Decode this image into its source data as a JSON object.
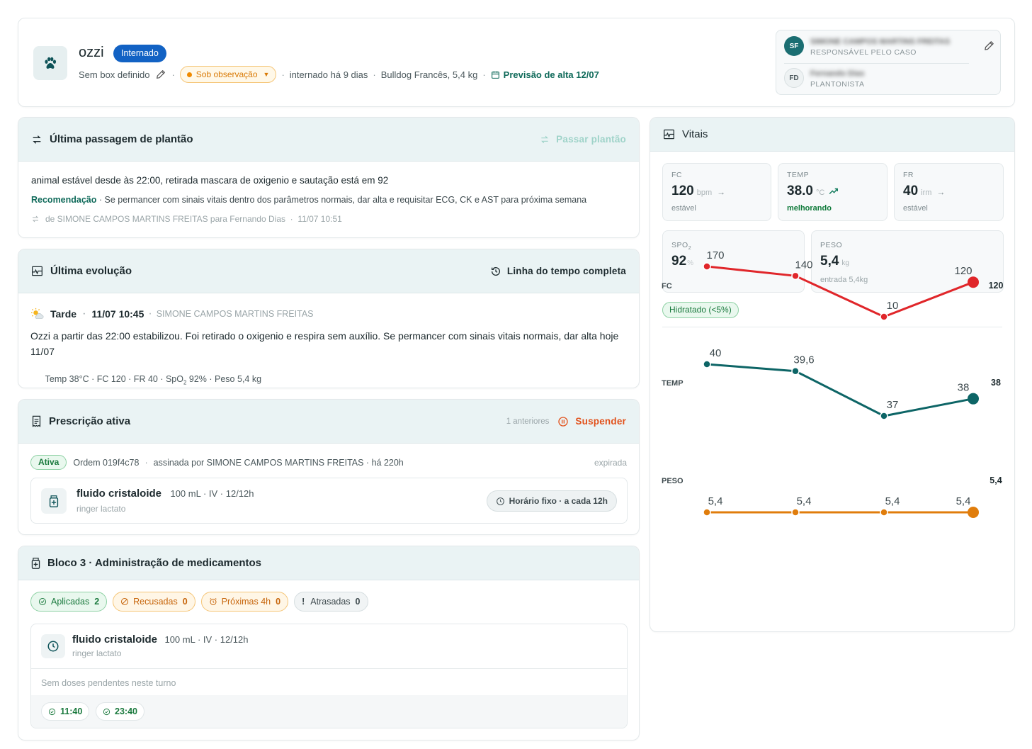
{
  "patient": {
    "name": "ozzi",
    "status_badge": "Internado",
    "box": "Sem box definido",
    "observation": "Sob observação",
    "admitted": "internado há 9 dias",
    "breed_weight": "Bulldog Francês, 5,4 kg",
    "discharge": "Previsão de alta 12/07"
  },
  "team": {
    "responsible": {
      "initials": "SF",
      "name": "SIMONE CAMPOS MARTINS FREITAS",
      "role": "RESPONSÁVEL PELO CASO"
    },
    "oncall": {
      "initials": "FD",
      "name": "Fernando Dias",
      "role": "PLANTONISTA"
    }
  },
  "handoff": {
    "title": "Última passagem de plantão",
    "action": "Passar plantão",
    "text": "animal estável desde às 22:00, retirada mascara de oxigenio e sautação está em 92",
    "rec_label": "Recomendação",
    "rec_text": " · Se permancer com sinais vitais dentro dos parâmetros normais, dar alta e requisitar ECG, CK e AST para próxima semana",
    "meta": "de SIMONE CAMPOS MARTINS FREITAS para Fernando Dias  ·  11/07 10:51"
  },
  "evolution": {
    "title": "Última evolução",
    "action": "Linha do tempo completa",
    "period": "Tarde",
    "datetime": "11/07 10:45",
    "author": "SIMONE CAMPOS MARTINS FREITAS",
    "text": "Ozzi a partir das 22:00 estabilizou. Foi retirado o oxigenio e respira sem auxílio. Se permancer com sinais vitais normais, dar alta hoje 11/07",
    "vitals_pre": "Temp 38°C · FC 120 · FR 40 · SpO",
    "vitals_sub": "2",
    "vitals_post": " 92% · Peso 5,4 kg"
  },
  "prescription": {
    "title": "Prescrição ativa",
    "previous": "1 anteriores",
    "suspend": "Suspender",
    "badge": "Ativa",
    "order": "Ordem 019f4c78",
    "signed": "assinada por SIMONE CAMPOS MARTINS FREITAS · há 220h",
    "expired": "expirada",
    "item": {
      "name": "fluido cristaloide",
      "dose": "100 mL · IV · 12/12h",
      "sub": "ringer lactato",
      "schedule": "Horário fixo · a cada 12h"
    }
  },
  "admin": {
    "title": "Bloco 3 · Administração de medicamentos",
    "filters": [
      {
        "label": "Aplicadas",
        "count": "2"
      },
      {
        "label": "Recusadas",
        "count": "0"
      },
      {
        "label": "Próximas 4h",
        "count": "0"
      },
      {
        "label": "Atrasadas",
        "count": "0"
      }
    ],
    "item": {
      "name": "fluido cristaloide",
      "dose": "100 mL · IV · 12/12h",
      "sub": "ringer lactato"
    },
    "empty": "Sem doses pendentes neste turno",
    "times": [
      "11:40",
      "23:40"
    ]
  },
  "vitals": {
    "title": "Vitais",
    "fc": {
      "label": "FC",
      "value": "120",
      "unit": "bpm",
      "trend": "estável"
    },
    "temp": {
      "label": "TEMP",
      "value": "38.0",
      "unit": "°C",
      "trend": "melhorando"
    },
    "fr": {
      "label": "FR",
      "value": "40",
      "unit": "irm",
      "trend": "estável"
    },
    "spo": {
      "label": "SPO",
      "label_sub": "2",
      "value": "92",
      "unit": "%"
    },
    "peso": {
      "label": "PESO",
      "value": "5,4",
      "unit": "kg",
      "note": "entrada 5,4kg"
    },
    "hydration": "Hidratado (<5%)",
    "colors": {
      "fc": "#e0262a",
      "temp": "#0d6566",
      "peso": "#e07d0c"
    }
  },
  "chart_data": {
    "type": "line",
    "series": [
      {
        "name": "FC",
        "values": [
          170,
          140,
          10,
          120
        ],
        "labels": [
          "170",
          "140",
          "10",
          "120"
        ],
        "last": "120"
      },
      {
        "name": "TEMP",
        "values": [
          40,
          39.6,
          37,
          38
        ],
        "labels": [
          "40",
          "39,6",
          "37",
          "38"
        ],
        "last": "38"
      },
      {
        "name": "PESO",
        "values": [
          5.4,
          5.4,
          5.4,
          5.4
        ],
        "labels": [
          "5,4",
          "5,4",
          "5,4",
          "5,4"
        ],
        "last": "5,4"
      }
    ],
    "grid": false,
    "legend": "none"
  }
}
